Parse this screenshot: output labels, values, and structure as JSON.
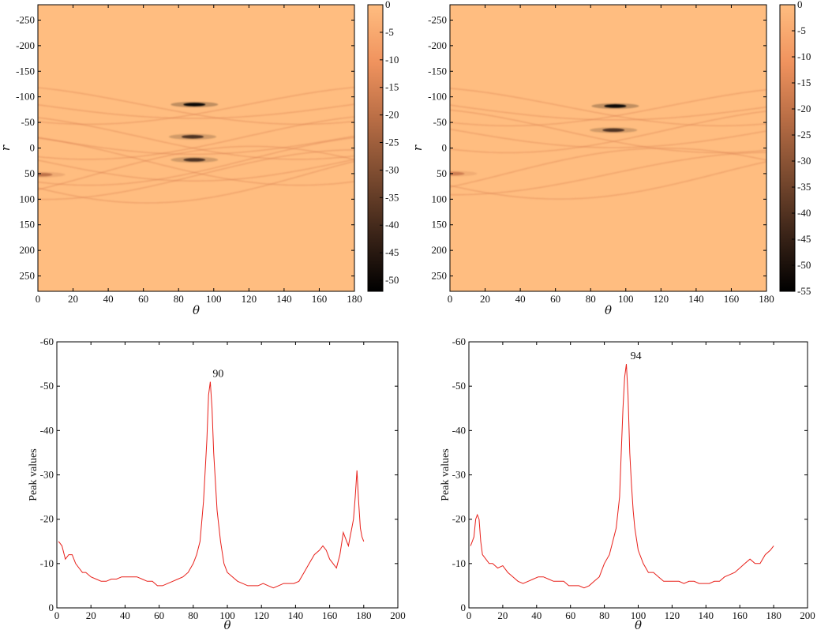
{
  "chart_data": [
    {
      "type": "heatmap",
      "xlabel": "θ",
      "ylabel": "r",
      "xlim": [
        0,
        180
      ],
      "ylim": [
        -280,
        280
      ],
      "x_ticks": [
        0,
        20,
        40,
        60,
        80,
        100,
        120,
        140,
        160,
        180
      ],
      "y_ticks": [
        -250,
        -200,
        -150,
        -100,
        -50,
        0,
        50,
        100,
        150,
        200,
        250
      ],
      "colorbar": {
        "min": -52,
        "max": 0,
        "ticks": [
          0,
          -5,
          -10,
          -15,
          -20,
          -25,
          -30,
          -35,
          -40,
          -45,
          -50
        ]
      },
      "colormap": [
        "#000000",
        "#3b2418",
        "#7a4a2f",
        "#b86d45",
        "#f0935e",
        "#ffbd80"
      ],
      "background_color": "#ffbd80",
      "peaks": [
        {
          "theta": 89,
          "r": -85,
          "value": -52
        },
        {
          "theta": 88,
          "r": -22,
          "value": -40
        },
        {
          "theta": 89,
          "r": 23,
          "value": -40
        },
        {
          "theta": 2,
          "r": 52,
          "value": -20
        }
      ]
    },
    {
      "type": "heatmap",
      "xlabel": "θ",
      "ylabel": "r",
      "xlim": [
        0,
        180
      ],
      "ylim": [
        -280,
        280
      ],
      "x_ticks": [
        0,
        20,
        40,
        60,
        80,
        100,
        120,
        140,
        160,
        180
      ],
      "y_ticks": [
        -250,
        -200,
        -150,
        -100,
        -50,
        0,
        50,
        100,
        150,
        200,
        250
      ],
      "colorbar": {
        "min": -55,
        "max": 0,
        "ticks": [
          0,
          -5,
          -10,
          -15,
          -20,
          -25,
          -30,
          -35,
          -40,
          -45,
          -50,
          -55
        ]
      },
      "colormap": [
        "#000000",
        "#3b2418",
        "#7a4a2f",
        "#b86d45",
        "#f0935e",
        "#ffbd80"
      ],
      "background_color": "#ffbd80",
      "peaks": [
        {
          "theta": 94,
          "r": -82,
          "value": -55
        },
        {
          "theta": 93,
          "r": -35,
          "value": -42
        },
        {
          "theta": 2,
          "r": 50,
          "value": -18
        }
      ]
    },
    {
      "type": "line",
      "xlabel": "θ",
      "ylabel": "Peak values",
      "xlim": [
        0,
        200
      ],
      "ylim": [
        0,
        -60
      ],
      "x_ticks": [
        0,
        20,
        40,
        60,
        80,
        100,
        120,
        140,
        160,
        180,
        200
      ],
      "y_ticks": [
        0,
        -10,
        -20,
        -30,
        -40,
        -50,
        -60
      ],
      "line_color": "#e8201a",
      "annotation": {
        "text": "90",
        "x": 90,
        "y": -51
      },
      "series": [
        {
          "x": [
            1,
            3,
            5,
            7,
            9,
            11,
            13,
            15,
            17,
            20,
            23,
            26,
            29,
            32,
            35,
            38,
            41,
            44,
            47,
            50,
            53,
            56,
            59,
            62,
            65,
            68,
            71,
            74,
            77,
            80,
            82,
            84,
            86,
            88,
            89,
            90,
            91,
            92,
            94,
            96,
            98,
            100,
            103,
            106,
            109,
            112,
            115,
            118,
            121,
            124,
            127,
            130,
            133,
            136,
            139,
            142,
            145,
            148,
            151,
            154,
            156,
            158,
            160,
            162,
            164,
            166,
            168,
            170,
            171,
            172,
            173,
            174,
            175,
            176,
            177,
            178,
            179,
            180
          ],
          "y": [
            -15,
            -14,
            -11,
            -12,
            -12,
            -10,
            -9,
            -8,
            -8,
            -7,
            -6.5,
            -6,
            -6,
            -6.5,
            -6.5,
            -7,
            -7,
            -7,
            -7,
            -6.5,
            -6,
            -6,
            -5,
            -5,
            -5.5,
            -6,
            -6.5,
            -7,
            -8,
            -10,
            -12,
            -15,
            -24,
            -38,
            -48,
            -51,
            -45,
            -35,
            -22,
            -15,
            -10,
            -8,
            -7,
            -6,
            -5.5,
            -5,
            -5,
            -5,
            -5.5,
            -5,
            -4.5,
            -5,
            -5.5,
            -5.5,
            -5.5,
            -6,
            -8,
            -10,
            -12,
            -13,
            -14,
            -13,
            -11,
            -10,
            -9,
            -12,
            -17,
            -15,
            -14,
            -16,
            -18,
            -20,
            -25,
            -31,
            -24,
            -18,
            -16,
            -15
          ]
        }
      ]
    },
    {
      "type": "line",
      "xlabel": "θ",
      "ylabel": "Peak values",
      "xlim": [
        0,
        200
      ],
      "ylim": [
        0,
        -60
      ],
      "x_ticks": [
        0,
        20,
        40,
        60,
        80,
        100,
        120,
        140,
        160,
        180,
        200
      ],
      "y_ticks": [
        0,
        -10,
        -20,
        -30,
        -40,
        -50,
        -60
      ],
      "line_color": "#e8201a",
      "annotation": {
        "text": "94",
        "x": 94,
        "y": -55
      },
      "series": [
        {
          "x": [
            1,
            2,
            3,
            4,
            5,
            6,
            7,
            8,
            10,
            12,
            14,
            17,
            20,
            23,
            26,
            29,
            32,
            35,
            38,
            41,
            44,
            47,
            50,
            53,
            56,
            59,
            62,
            65,
            68,
            71,
            74,
            77,
            80,
            83,
            85,
            87,
            89,
            90,
            91,
            92,
            93,
            94,
            95,
            96,
            97,
            98,
            100,
            103,
            106,
            109,
            112,
            115,
            118,
            121,
            124,
            127,
            130,
            133,
            136,
            139,
            142,
            145,
            148,
            151,
            154,
            157,
            160,
            163,
            166,
            169,
            172,
            175,
            178,
            180
          ],
          "y": [
            -14,
            -15,
            -16,
            -20,
            -21,
            -20,
            -15,
            -12,
            -11,
            -10,
            -10,
            -9,
            -9.5,
            -8,
            -7,
            -6,
            -5.5,
            -6,
            -6.5,
            -7,
            -7,
            -6.5,
            -6,
            -6,
            -6,
            -5,
            -5,
            -5,
            -4.5,
            -5,
            -6,
            -7,
            -10,
            -12,
            -15,
            -18,
            -25,
            -35,
            -45,
            -52,
            -55,
            -48,
            -35,
            -28,
            -22,
            -18,
            -13,
            -10,
            -8,
            -8,
            -7,
            -6,
            -6,
            -6,
            -6,
            -5.5,
            -6,
            -6,
            -5.5,
            -5.5,
            -5.5,
            -6,
            -6,
            -7,
            -7.5,
            -8,
            -9,
            -10,
            -11,
            -10,
            -10,
            -12,
            -13,
            -14
          ]
        }
      ]
    }
  ]
}
